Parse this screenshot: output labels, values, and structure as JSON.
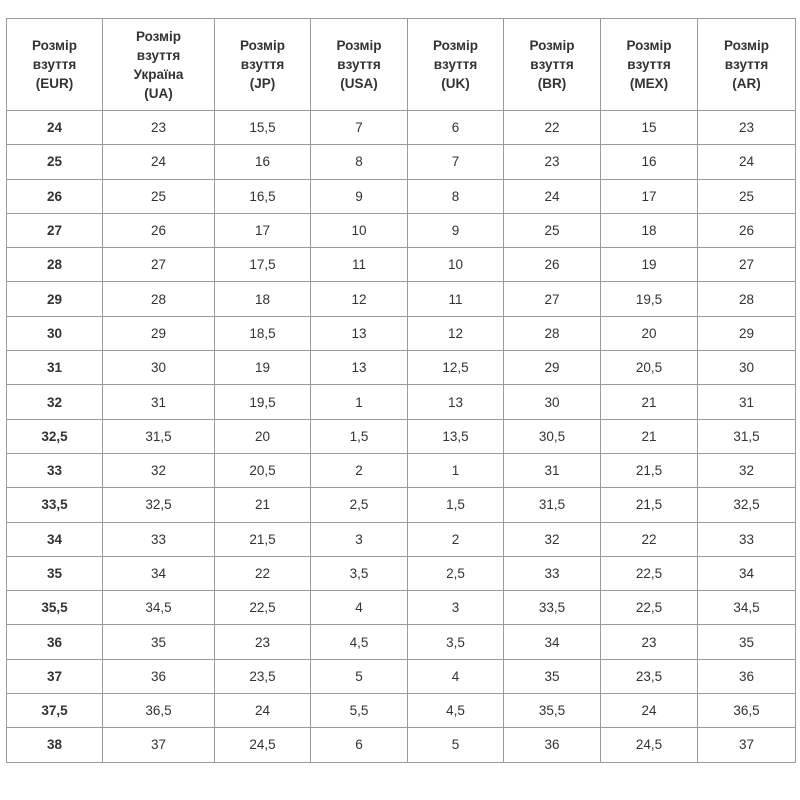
{
  "table": {
    "headers": [
      [
        "Розмір",
        "взуття",
        "(EUR)"
      ],
      [
        "Розмір",
        "взуття",
        "Україна",
        "(UA)"
      ],
      [
        "Розмір",
        "взуття",
        "(JP)"
      ],
      [
        "Розмір",
        "взуття",
        "(USA)"
      ],
      [
        "Розмір",
        "взуття",
        "(UK)"
      ],
      [
        "Розмір",
        "взуття",
        "(BR)"
      ],
      [
        "Розмір",
        "взуття",
        "(MEX)"
      ],
      [
        "Розмір",
        "взуття",
        "(AR)"
      ]
    ],
    "rows": [
      [
        "24",
        "23",
        "15,5",
        "7",
        "6",
        "22",
        "15",
        "23"
      ],
      [
        "25",
        "24",
        "16",
        "8",
        "7",
        "23",
        "16",
        "24"
      ],
      [
        "26",
        "25",
        "16,5",
        "9",
        "8",
        "24",
        "17",
        "25"
      ],
      [
        "27",
        "26",
        "17",
        "10",
        "9",
        "25",
        "18",
        "26"
      ],
      [
        "28",
        "27",
        "17,5",
        "11",
        "10",
        "26",
        "19",
        "27"
      ],
      [
        "29",
        "28",
        "18",
        "12",
        "11",
        "27",
        "19,5",
        "28"
      ],
      [
        "30",
        "29",
        "18,5",
        "13",
        "12",
        "28",
        "20",
        "29"
      ],
      [
        "31",
        "30",
        "19",
        "13",
        "12,5",
        "29",
        "20,5",
        "30"
      ],
      [
        "32",
        "31",
        "19,5",
        "1",
        "13",
        "30",
        "21",
        "31"
      ],
      [
        "32,5",
        "31,5",
        "20",
        "1,5",
        "13,5",
        "30,5",
        "21",
        "31,5"
      ],
      [
        "33",
        "32",
        "20,5",
        "2",
        "1",
        "31",
        "21,5",
        "32"
      ],
      [
        "33,5",
        "32,5",
        "21",
        "2,5",
        "1,5",
        "31,5",
        "21,5",
        "32,5"
      ],
      [
        "34",
        "33",
        "21,5",
        "3",
        "2",
        "32",
        "22",
        "33"
      ],
      [
        "35",
        "34",
        "22",
        "3,5",
        "2,5",
        "33",
        "22,5",
        "34"
      ],
      [
        "35,5",
        "34,5",
        "22,5",
        "4",
        "3",
        "33,5",
        "22,5",
        "34,5"
      ],
      [
        "36",
        "35",
        "23",
        "4,5",
        "3,5",
        "34",
        "23",
        "35"
      ],
      [
        "37",
        "36",
        "23,5",
        "5",
        "4",
        "35",
        "23,5",
        "36"
      ],
      [
        "37,5",
        "36,5",
        "24",
        "5,5",
        "4,5",
        "35,5",
        "24",
        "36,5"
      ],
      [
        "38",
        "37",
        "24,5",
        "6",
        "5",
        "36",
        "24,5",
        "37"
      ]
    ]
  }
}
